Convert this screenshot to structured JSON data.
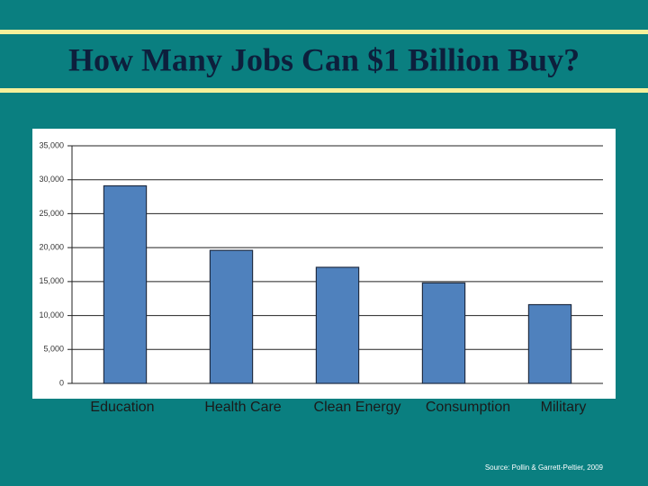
{
  "chart_data": {
    "type": "bar",
    "title": "How Many Jobs Can $1 Billion Buy?",
    "categories": [
      "Education",
      "Health Care",
      "Clean Energy",
      "Consumption",
      "Military"
    ],
    "values": [
      29100,
      19600,
      17100,
      14800,
      11600
    ],
    "color": "#4f81bd",
    "ylim": [
      0,
      35000
    ],
    "yticks": [
      0,
      {
        "value": 5000,
        "label": "5,000"
      },
      {
        "value": 10000,
        "label": "10,000"
      },
      {
        "value": 15000,
        "label": "15,000"
      },
      {
        "value": 20000,
        "label": "20,000"
      },
      {
        "value": 25000,
        "label": "25,000"
      },
      {
        "value": 30000,
        "label": "30,000"
      },
      {
        "value": 35000,
        "label": "35,000"
      }
    ],
    "grid": true,
    "source": "Source: Pollin & Garrett-Peltier, 2009"
  }
}
